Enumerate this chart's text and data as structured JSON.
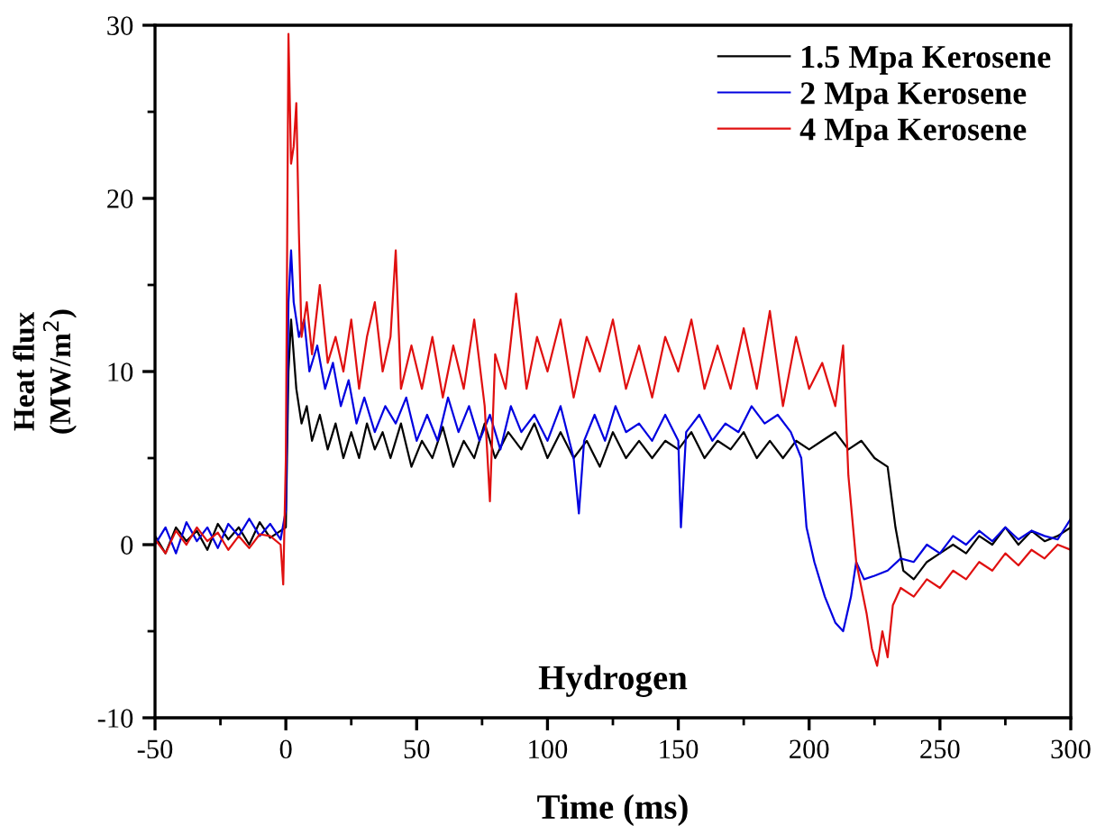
{
  "chart_data": {
    "type": "line",
    "xlabel": "Time (ms)",
    "ylabel": "Heat flux\n(MW/m$^{2}$)",
    "annotations": [
      "Hydrogen"
    ],
    "xlim": [
      -50,
      300
    ],
    "ylim": [
      -10,
      30
    ],
    "xticks": [
      -50,
      0,
      50,
      100,
      150,
      200,
      250,
      300
    ],
    "yticks": [
      -10,
      0,
      10,
      20,
      30
    ],
    "grid": false,
    "legend": "top right",
    "line_style": "solid",
    "series": [
      {
        "name": "1.5 Mpa Kerosene",
        "color": "#000000",
        "x": [
          -50,
          -46,
          -42,
          -38,
          -34,
          -30,
          -26,
          -22,
          -18,
          -14,
          -10,
          -6,
          -2,
          0,
          1,
          2,
          4,
          6,
          8,
          10,
          13,
          16,
          19,
          22,
          25,
          28,
          31,
          34,
          37,
          40,
          44,
          48,
          52,
          56,
          60,
          64,
          68,
          72,
          76,
          80,
          85,
          90,
          95,
          100,
          105,
          110,
          115,
          120,
          125,
          130,
          135,
          140,
          145,
          150,
          155,
          160,
          165,
          170,
          175,
          180,
          185,
          190,
          195,
          200,
          205,
          210,
          215,
          220,
          225,
          230,
          233,
          236,
          240,
          245,
          250,
          255,
          260,
          265,
          270,
          275,
          280,
          285,
          290,
          295,
          300
        ],
        "values": [
          0.5,
          -0.5,
          1,
          0.2,
          0.8,
          -0.3,
          1.2,
          0.3,
          1,
          0,
          1.3,
          0.4,
          0.8,
          1,
          10,
          13,
          9,
          7,
          8,
          6,
          7.5,
          5.5,
          7,
          5,
          6.5,
          5,
          7,
          5.5,
          6.5,
          5,
          7,
          4.5,
          6,
          5,
          6.8,
          4.5,
          6,
          5,
          7,
          5,
          6.5,
          5.5,
          7,
          5,
          6.5,
          5,
          6,
          4.5,
          6.5,
          5,
          6,
          5,
          6,
          5.5,
          6.5,
          5,
          6,
          5.5,
          6.5,
          5,
          6,
          5,
          6,
          5.5,
          6,
          6.5,
          5.5,
          6,
          5,
          4.5,
          1,
          -1.5,
          -2,
          -1,
          -0.5,
          0,
          -0.5,
          0.5,
          0,
          1,
          0,
          0.8,
          0.2,
          0.5,
          1
        ]
      },
      {
        "name": "2 Mpa Kerosene",
        "color": "#0000e0",
        "x": [
          -50,
          -46,
          -42,
          -38,
          -34,
          -30,
          -26,
          -22,
          -18,
          -14,
          -10,
          -6,
          -2,
          0,
          1,
          2,
          3,
          5,
          7,
          9,
          12,
          15,
          18,
          21,
          24,
          27,
          30,
          34,
          38,
          42,
          46,
          50,
          54,
          58,
          62,
          66,
          70,
          74,
          78,
          82,
          86,
          90,
          95,
          100,
          105,
          110,
          112,
          114,
          118,
          122,
          126,
          130,
          135,
          140,
          145,
          150,
          151,
          153,
          158,
          163,
          168,
          173,
          178,
          183,
          188,
          193,
          197,
          199,
          202,
          206,
          210,
          213,
          216,
          218,
          221,
          225,
          230,
          235,
          240,
          245,
          250,
          255,
          260,
          265,
          270,
          275,
          280,
          285,
          290,
          295,
          300
        ],
        "values": [
          0,
          1,
          -0.5,
          1.3,
          0.2,
          1,
          -0.2,
          1.2,
          0.5,
          1.5,
          0.5,
          1.2,
          0.3,
          2,
          14,
          17,
          14,
          12,
          13,
          10,
          11.5,
          9,
          10.5,
          8,
          9.5,
          7,
          8.5,
          6.5,
          8,
          7,
          8.5,
          6,
          7.5,
          6,
          8.5,
          6.5,
          8,
          6,
          7.5,
          5.5,
          8,
          6.5,
          7.5,
          6,
          8,
          5,
          1.8,
          6,
          7.5,
          6,
          8,
          6.5,
          7,
          6,
          7.5,
          6,
          1,
          6.5,
          7.5,
          6,
          7,
          6.5,
          8,
          7,
          7.5,
          6.5,
          5,
          1,
          -1,
          -3,
          -4.5,
          -5,
          -3,
          -1,
          -2,
          -1.8,
          -1.5,
          -0.8,
          -1,
          0,
          -0.5,
          0.5,
          0,
          0.8,
          0.2,
          1,
          0.3,
          0.8,
          0.5,
          0.3,
          1.5
        ]
      },
      {
        "name": "4 Mpa Kerosene",
        "color": "#e01010",
        "x": [
          -50,
          -46,
          -42,
          -38,
          -34,
          -30,
          -26,
          -22,
          -18,
          -14,
          -10,
          -6,
          -2,
          -1,
          0,
          1,
          2,
          3,
          4,
          5,
          6,
          8,
          10,
          13,
          16,
          19,
          22,
          25,
          28,
          31,
          34,
          37,
          40,
          42,
          44,
          48,
          52,
          56,
          60,
          64,
          68,
          72,
          76,
          78,
          80,
          84,
          88,
          92,
          96,
          100,
          105,
          110,
          115,
          120,
          125,
          130,
          135,
          140,
          145,
          150,
          155,
          160,
          165,
          170,
          175,
          180,
          185,
          190,
          195,
          200,
          205,
          210,
          213,
          215,
          218,
          220,
          222,
          224,
          226,
          228,
          230,
          232,
          235,
          240,
          245,
          250,
          255,
          260,
          265,
          270,
          275,
          280,
          285,
          290,
          295,
          300
        ],
        "values": [
          0.3,
          -0.5,
          0.8,
          0,
          1,
          0.2,
          0.7,
          -0.3,
          0.5,
          -0.2,
          0.6,
          0.5,
          0,
          -2.3,
          5,
          29.5,
          22,
          23,
          25.5,
          18,
          12,
          14,
          11,
          15,
          10.5,
          12,
          10,
          13,
          9,
          12,
          14,
          10,
          12,
          17,
          9,
          11.5,
          9,
          12,
          8.5,
          11.5,
          9,
          13,
          8,
          2.5,
          11,
          9,
          14.5,
          9,
          12,
          10,
          13,
          8.5,
          12,
          10,
          13,
          9,
          11.5,
          8.5,
          12,
          10,
          13,
          9,
          11.5,
          9,
          12.5,
          9,
          13.5,
          8,
          12,
          9,
          10.5,
          8,
          11.5,
          4,
          -1,
          -2.5,
          -4,
          -6,
          -7,
          -5,
          -6.5,
          -3.5,
          -2.5,
          -3,
          -2,
          -2.5,
          -1.5,
          -2,
          -1,
          -1.5,
          -0.5,
          -1.2,
          -0.3,
          -0.8,
          0,
          -0.3
        ]
      }
    ]
  }
}
